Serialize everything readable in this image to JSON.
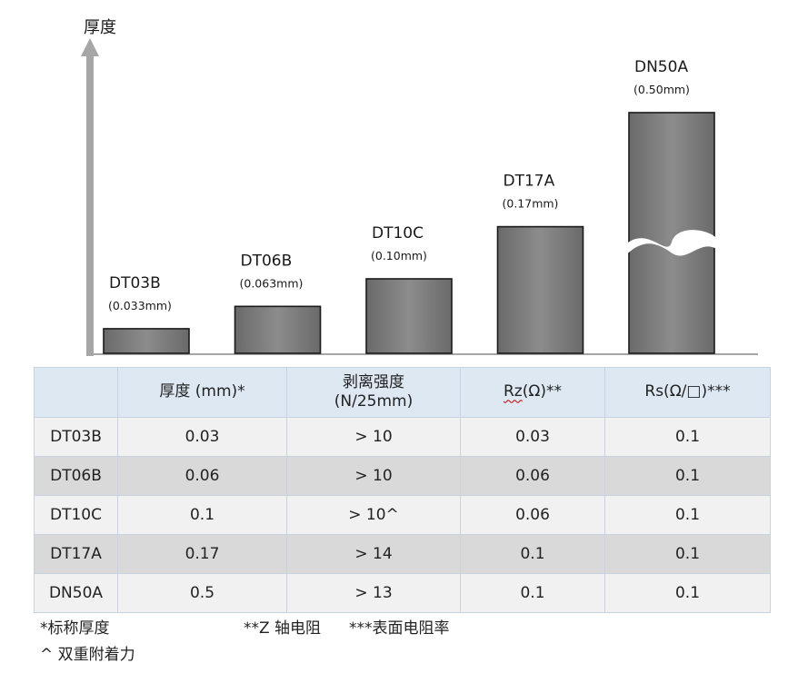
{
  "chart_data": {
    "type": "bar",
    "ylabel": "厚度",
    "categories": [
      "DT03B",
      "DT06B",
      "DT10C",
      "DT17A",
      "DN50A"
    ],
    "value_labels": [
      "(0.033mm)",
      "(0.063mm)",
      "(0.10mm)",
      "(0.17mm)",
      "(0.50mm)"
    ],
    "values": [
      0.033,
      0.063,
      0.1,
      0.17,
      0.5
    ],
    "axis_break_on": "DN50A",
    "legend": "none",
    "grid": false
  },
  "table": {
    "headers": [
      "",
      "厚度 (mm)*",
      "剥离强度\n(N/25mm)",
      "Rz(Ω)**",
      "Rs(Ω/□)***"
    ],
    "header_rz_prefix": "Rz",
    "header_rz_suffix": "(Ω)**",
    "rows": [
      [
        "DT03B",
        "0.03",
        "> 10",
        "0.03",
        "0.1"
      ],
      [
        "DT06B",
        "0.06",
        "> 10",
        "0.06",
        "0.1"
      ],
      [
        "DT10C",
        "0.1",
        "> 10^",
        "0.06",
        "0.1"
      ],
      [
        "DT17A",
        "0.17",
        "> 14",
        "0.1",
        "0.1"
      ],
      [
        "DN50A",
        "0.5",
        "> 13",
        "0.1",
        "0.1"
      ]
    ]
  },
  "footnotes": {
    "nominal": "*标称厚度",
    "z_axis": "**Z 轴电阻",
    "surface": "***表面电阻率",
    "double": "^ 双重附着力"
  }
}
